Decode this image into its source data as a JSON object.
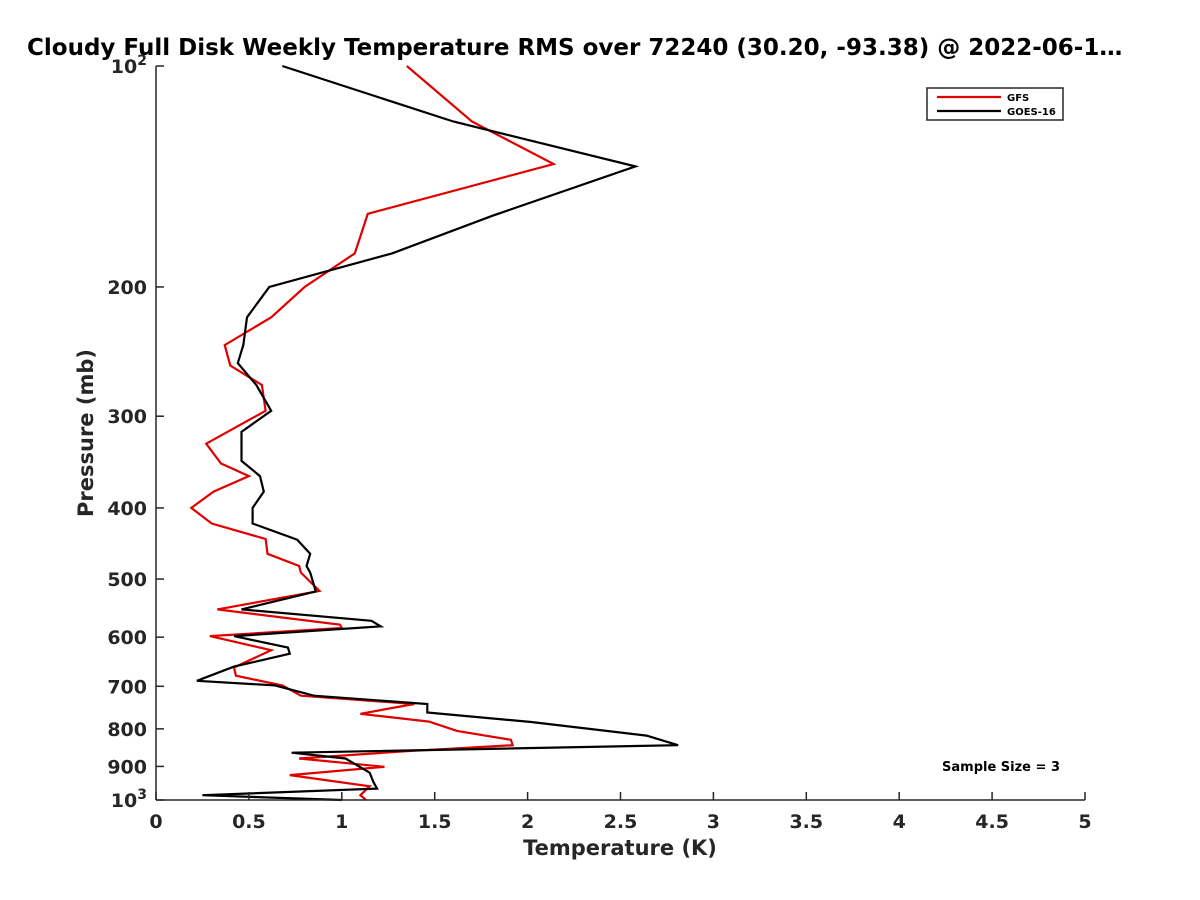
{
  "chart_data": {
    "type": "line",
    "title": "Cloudy Full Disk Weekly Temperature RMS over 72240 (30.20, -93.38) @ 2022-06-1…",
    "xlabel": "Temperature (K)",
    "ylabel": "Pressure (mb)",
    "xlim": [
      0,
      5
    ],
    "ylim": [
      100,
      1000
    ],
    "y_scale": "log",
    "y_reversed": true,
    "grid": false,
    "legend_position": "top-right",
    "x_ticks": [
      0,
      0.5,
      1,
      1.5,
      2,
      2.5,
      3,
      3.5,
      4,
      4.5,
      5
    ],
    "x_tick_labels": [
      "0",
      "0.5",
      "1",
      "1.5",
      "2",
      "2.5",
      "3",
      "3.5",
      "4",
      "4.5",
      "5"
    ],
    "y_ticks": [
      100,
      200,
      300,
      400,
      500,
      600,
      700,
      800,
      900,
      1000
    ],
    "y_tick_labels": [
      {
        "base": "10",
        "exp": "2"
      },
      {
        "base": "200",
        "exp": ""
      },
      {
        "base": "300",
        "exp": ""
      },
      {
        "base": "400",
        "exp": ""
      },
      {
        "base": "500",
        "exp": ""
      },
      {
        "base": "600",
        "exp": ""
      },
      {
        "base": "700",
        "exp": ""
      },
      {
        "base": "800",
        "exp": ""
      },
      {
        "base": "900",
        "exp": ""
      },
      {
        "base": "10",
        "exp": "3"
      }
    ],
    "annotation": "Sample Size = 3",
    "series": [
      {
        "name": "GFS",
        "color": "#e00000",
        "points": [
          [
            1.35,
            100
          ],
          [
            1.7,
            119
          ],
          [
            2.14,
            136
          ],
          [
            1.14,
            159
          ],
          [
            1.07,
            180
          ],
          [
            0.8,
            200
          ],
          [
            0.62,
            220
          ],
          [
            0.37,
            240
          ],
          [
            0.4,
            256
          ],
          [
            0.57,
            272
          ],
          [
            0.59,
            295
          ],
          [
            0.27,
            327
          ],
          [
            0.35,
            348
          ],
          [
            0.5,
            362
          ],
          [
            0.31,
            380
          ],
          [
            0.19,
            400
          ],
          [
            0.3,
            420
          ],
          [
            0.59,
            441
          ],
          [
            0.6,
            462
          ],
          [
            0.77,
            480
          ],
          [
            0.78,
            490
          ],
          [
            0.88,
            519
          ],
          [
            0.33,
            550
          ],
          [
            0.99,
            577
          ],
          [
            1.0,
            583
          ],
          [
            0.29,
            598
          ],
          [
            0.62,
            625
          ],
          [
            0.42,
            660
          ],
          [
            0.43,
            677
          ],
          [
            0.68,
            698
          ],
          [
            0.78,
            721
          ],
          [
            1.39,
            740
          ],
          [
            1.1,
            763
          ],
          [
            1.47,
            782
          ],
          [
            1.62,
            805
          ],
          [
            1.91,
            828
          ],
          [
            1.92,
            842
          ],
          [
            1.35,
            858
          ],
          [
            0.77,
            878
          ],
          [
            1.23,
            901
          ],
          [
            0.72,
            925
          ],
          [
            1.15,
            958
          ],
          [
            1.1,
            985
          ],
          [
            1.13,
            1000
          ]
        ]
      },
      {
        "name": "GOES-16",
        "color": "#000000",
        "points": [
          [
            0.68,
            100
          ],
          [
            1.6,
            119
          ],
          [
            2.58,
            137
          ],
          [
            1.81,
            160
          ],
          [
            1.27,
            180
          ],
          [
            0.61,
            200
          ],
          [
            0.49,
            220
          ],
          [
            0.47,
            240
          ],
          [
            0.44,
            254
          ],
          [
            0.54,
            272
          ],
          [
            0.62,
            295
          ],
          [
            0.46,
            315
          ],
          [
            0.46,
            345
          ],
          [
            0.56,
            362
          ],
          [
            0.58,
            380
          ],
          [
            0.52,
            400
          ],
          [
            0.52,
            420
          ],
          [
            0.76,
            442
          ],
          [
            0.83,
            462
          ],
          [
            0.81,
            480
          ],
          [
            0.83,
            490
          ],
          [
            0.86,
            520
          ],
          [
            0.46,
            550
          ],
          [
            1.16,
            570
          ],
          [
            1.21,
            580
          ],
          [
            0.42,
            598
          ],
          [
            0.71,
            620
          ],
          [
            0.72,
            632
          ],
          [
            0.42,
            658
          ],
          [
            0.22,
            688
          ],
          [
            0.64,
            698
          ],
          [
            0.85,
            721
          ],
          [
            1.46,
            740
          ],
          [
            1.46,
            760
          ],
          [
            2.02,
            783
          ],
          [
            2.64,
            817
          ],
          [
            2.81,
            842
          ],
          [
            0.73,
            862
          ],
          [
            1.02,
            878
          ],
          [
            1.15,
            918
          ],
          [
            1.17,
            945
          ],
          [
            1.19,
            965
          ],
          [
            0.25,
            985
          ],
          [
            1.0,
            1000
          ]
        ]
      }
    ]
  }
}
